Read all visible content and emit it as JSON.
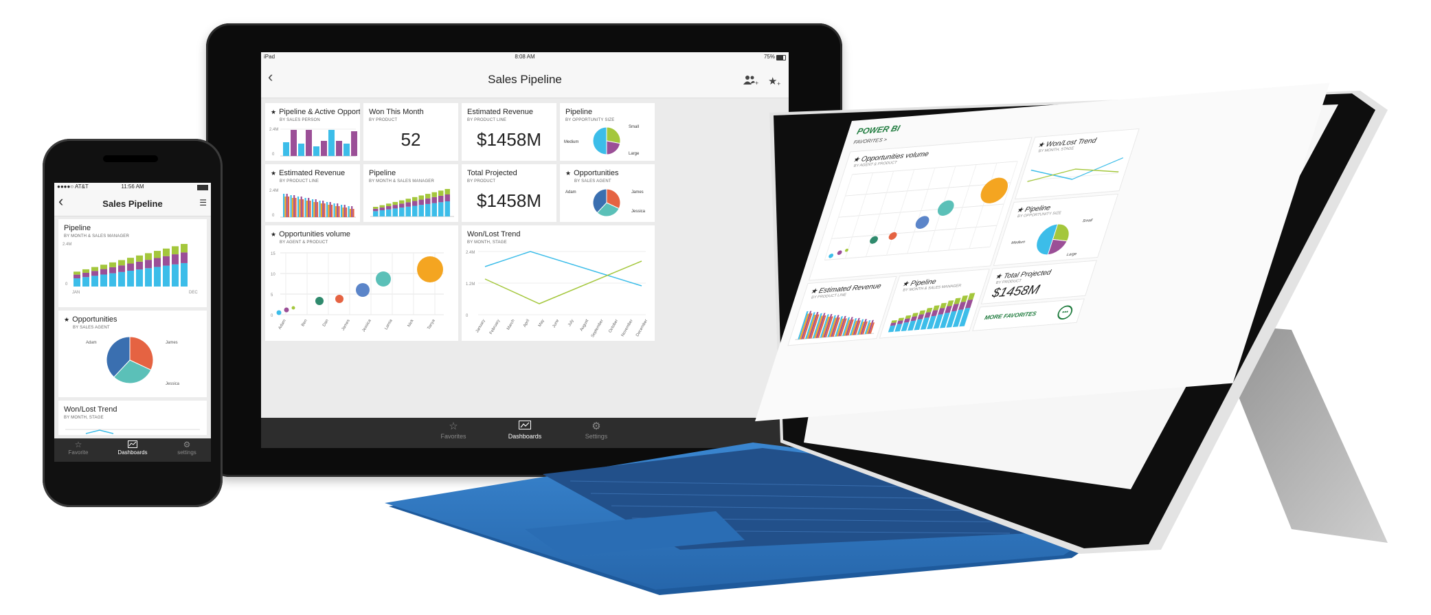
{
  "colors": {
    "cyan": "#3cbde9",
    "purple": "#9b4f97",
    "green": "#a4c73c",
    "orange": "#f4a521",
    "red": "#e56342",
    "teal": "#5bc0b8",
    "navy": "#3a6fb0",
    "blue": "#5b85c9",
    "darkgreen": "#2f8a6d",
    "keyboard": "#2f76c2"
  },
  "ipad": {
    "status": {
      "device": "iPad",
      "time": "8:08 AM",
      "battery": "75%"
    },
    "title": "Sales Pipeline",
    "nav_icons": [
      "back-icon",
      "add-people-icon",
      "add-favorite-icon"
    ],
    "tiles": {
      "pipeline_active": {
        "title": "Pipeline & Active Opportunities",
        "subtitle": "BY SALES PERSON",
        "y_ticks": [
          "2.4M",
          "0"
        ]
      },
      "won_month": {
        "title": "Won This Month",
        "subtitle": "BY PRODUCT",
        "value": "52"
      },
      "est_revenue_card": {
        "title": "Estimated Revenue",
        "subtitle": "BY PRODUCT LINE",
        "value": "$1458M"
      },
      "pipeline_size": {
        "title": "Pipeline",
        "subtitle": "BY OPPORTUNITY SIZE",
        "labels": [
          "Small",
          "Medium",
          "Large"
        ]
      },
      "est_revenue_chart": {
        "title": "Estimated Revenue",
        "subtitle": "BY PRODUCT LINE",
        "y_ticks": [
          "2.4M",
          "0"
        ]
      },
      "pipeline_month": {
        "title": "Pipeline",
        "subtitle": "BY MONTH & SALES MANAGER"
      },
      "total_projected": {
        "title": "Total Projected",
        "subtitle": "BY PRODUCT",
        "value": "$1458M"
      },
      "opportunities": {
        "title": "Opportunities",
        "subtitle": "BY SALES AGENT",
        "labels": [
          "Adam",
          "James",
          "Jessica"
        ]
      },
      "opp_volume": {
        "title": "Opportunities volume",
        "subtitle": "BY AGENT & PRODUCT",
        "y_ticks": [
          "15",
          "10",
          "5",
          "0"
        ],
        "x_labels": [
          "Adam",
          "Ben",
          "Dan",
          "James",
          "Jessica",
          "Lamia",
          "Nick",
          "Tanya"
        ]
      },
      "wonlost": {
        "title": "Won/Lost Trend",
        "subtitle": "BY MONTH, STAGE",
        "y_ticks": [
          "2.4M",
          "1.2M",
          "0"
        ],
        "x_labels": [
          "January",
          "February",
          "March",
          "April",
          "May",
          "June",
          "July",
          "August",
          "September",
          "October",
          "November",
          "December"
        ]
      }
    },
    "tabs": [
      {
        "label": "Favorites",
        "icon": "star-icon"
      },
      {
        "label": "Dashboards",
        "icon": "dashboard-icon"
      },
      {
        "label": "Settings",
        "icon": "gear-icon"
      }
    ]
  },
  "phone": {
    "status": {
      "carrier": "AT&T",
      "time": "11:56 AM"
    },
    "title": "Sales Pipeline",
    "tiles": {
      "pipeline": {
        "title": "Pipeline",
        "subtitle": "BY MONTH & SALES MANAGER",
        "y_ticks": [
          "2.4M",
          "0"
        ],
        "x_labels": [
          "JAN",
          "DEC"
        ]
      },
      "opportunities": {
        "title": "Opportunities",
        "subtitle": "BY SALES AGENT",
        "labels": [
          "Adam",
          "James",
          "Jessica"
        ]
      },
      "wonlost": {
        "title": "Won/Lost Trend",
        "subtitle": "BY MONTH, STAGE"
      }
    },
    "tabs": [
      {
        "label": "Favorite",
        "icon": "star-icon"
      },
      {
        "label": "Dashboards",
        "icon": "dashboard-icon"
      },
      {
        "label": "settings",
        "icon": "gear-icon"
      }
    ]
  },
  "surface": {
    "brand": "POWER BI",
    "favorites_link": "FAVORITES >",
    "tiles": {
      "opp_volume": {
        "title": "Opportunities volume",
        "subtitle": "BY AGENT & PRODUCT"
      },
      "wonlost": {
        "title": "Won/Lost Trend",
        "subtitle": "BY MONTH, STAGE"
      },
      "pipeline_size": {
        "title": "Pipeline",
        "subtitle": "BY OPPORTUNITY SIZE",
        "labels": [
          "Small",
          "Medium",
          "Large"
        ]
      },
      "est_revenue": {
        "title": "Estimated Revenue",
        "subtitle": "BY PRODUCT LINE"
      },
      "pipeline_month": {
        "title": "Pipeline",
        "subtitle": "BY MONTH & SALES MANAGER"
      },
      "total_projected": {
        "title": "Total Projected",
        "subtitle": "BY PRODUCT",
        "value": "$1458M"
      }
    },
    "more_favorites": "MORE FAVORITES"
  }
}
